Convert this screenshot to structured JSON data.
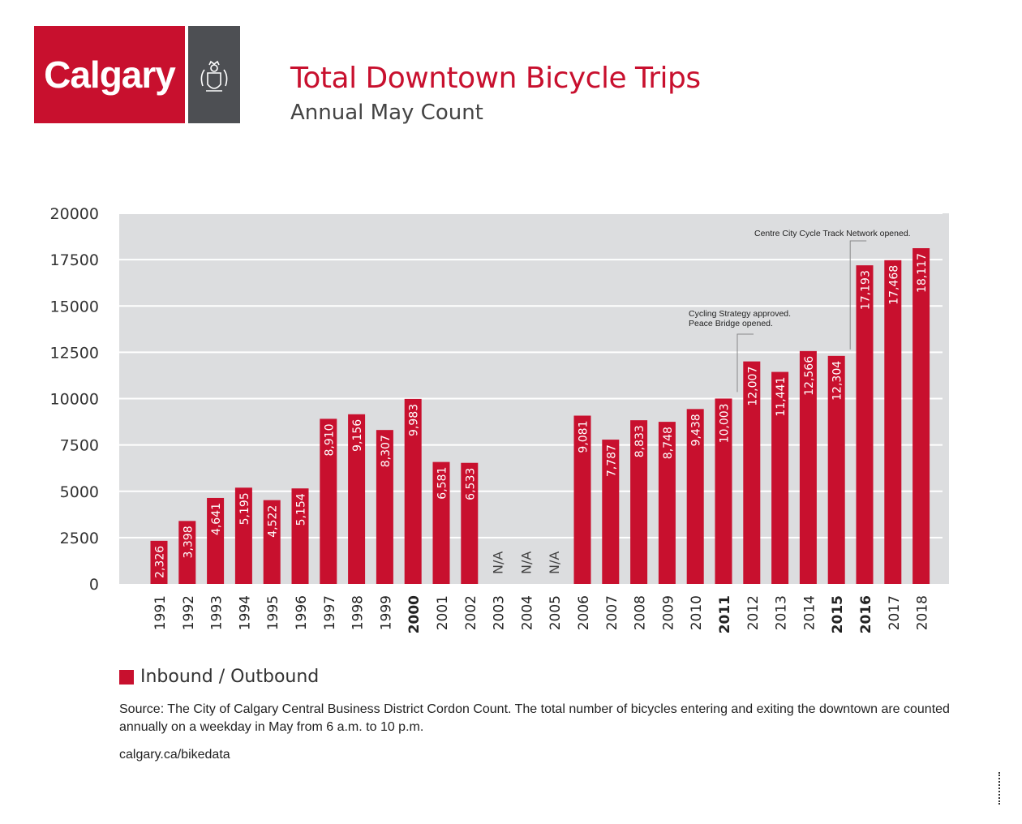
{
  "logo": {
    "text": "Calgary",
    "crest_icon": "city-crest-icon"
  },
  "title": "Total Downtown Bicycle Trips",
  "subtitle": "Annual May Count",
  "legend": {
    "label": "Inbound / Outbound",
    "color": "#c8102e"
  },
  "source": "Source: The City of Calgary Central Business District Cordon Count. The total number of bicycles entering and exiting the downtown are counted annually on a weekday in May from 6 a.m. to 10 p.m.",
  "url": "calgary.ca/bikedata",
  "chart_data": {
    "type": "bar",
    "title": "Total Downtown Bicycle Trips",
    "subtitle": "Annual May Count",
    "xlabel": "",
    "ylabel": "",
    "ylim": [
      0,
      20000
    ],
    "yticks": [
      0,
      2500,
      5000,
      7500,
      10000,
      12500,
      15000,
      17500,
      20000
    ],
    "grid": true,
    "bar_color": "#c8102e",
    "plot_background": "#dcdddf",
    "legend_position": "bottom-left",
    "categories": [
      "1991",
      "1992",
      "1993",
      "1994",
      "1995",
      "1996",
      "1997",
      "1998",
      "1999",
      "2000",
      "2001",
      "2002",
      "2003",
      "2004",
      "2005",
      "2006",
      "2007",
      "2008",
      "2009",
      "2010",
      "2011",
      "2012",
      "2013",
      "2014",
      "2015",
      "2016",
      "2017",
      "2018"
    ],
    "bold_categories": [
      "2000",
      "2011",
      "2015",
      "2016"
    ],
    "series": [
      {
        "name": "Inbound / Outbound",
        "values": [
          2326,
          3398,
          4641,
          5195,
          4522,
          5154,
          8910,
          9156,
          8307,
          9983,
          6581,
          6533,
          null,
          null,
          null,
          9081,
          7787,
          8833,
          8748,
          9438,
          10003,
          12007,
          11441,
          12566,
          12304,
          17193,
          17468,
          18117
        ],
        "labels": [
          "2,326",
          "3,398",
          "4,641",
          "5,195",
          "4,522",
          "5,154",
          "8,910",
          "9,156",
          "8,307",
          "9,983",
          "6,581",
          "6,533",
          "N/A",
          "N/A",
          "N/A",
          "9,081",
          "7,787",
          "8,833",
          "8,748",
          "9,438",
          "10,003",
          "12,007",
          "11,441",
          "12,566",
          "12,304",
          "17,193",
          "17,468",
          "18,117"
        ]
      }
    ],
    "annotations": [
      {
        "lines": [
          "Cycling Strategy approved.",
          "Peace Bridge opened."
        ],
        "category": "2011",
        "value": 10003
      },
      {
        "lines": [
          "Centre City Cycle Track Network opened."
        ],
        "category": "2015",
        "value": 12304
      }
    ]
  }
}
